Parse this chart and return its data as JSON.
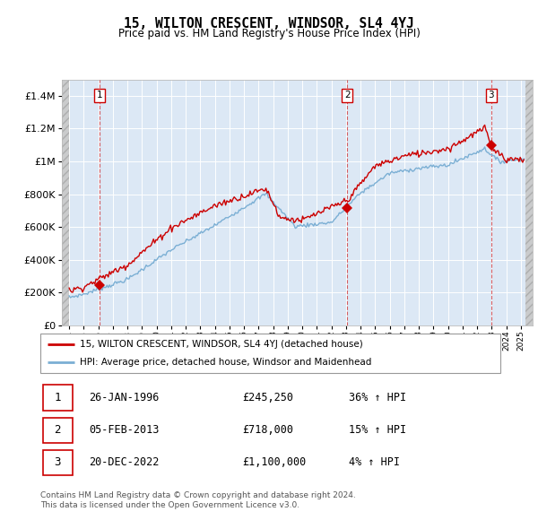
{
  "title": "15, WILTON CRESCENT, WINDSOR, SL4 4YJ",
  "subtitle": "Price paid vs. HM Land Registry's House Price Index (HPI)",
  "legend_line1": "15, WILTON CRESCENT, WINDSOR, SL4 4YJ (detached house)",
  "legend_line2": "HPI: Average price, detached house, Windsor and Maidenhead",
  "sale_color": "#cc0000",
  "hpi_color": "#7bafd4",
  "bg_color": "#dce8f5",
  "hatch_color": "#c8c8c8",
  "purchases": [
    {
      "date": 1996.07,
      "price": 245250,
      "label": "1"
    },
    {
      "date": 2013.09,
      "price": 718000,
      "label": "2"
    },
    {
      "date": 2022.96,
      "price": 1100000,
      "label": "3"
    }
  ],
  "table_rows": [
    {
      "num": "1",
      "date": "26-JAN-1996",
      "price": "£245,250",
      "pct": "36% ↑ HPI"
    },
    {
      "num": "2",
      "date": "05-FEB-2013",
      "price": "£718,000",
      "pct": "15% ↑ HPI"
    },
    {
      "num": "3",
      "date": "20-DEC-2022",
      "price": "£1,100,000",
      "pct": "4% ↑ HPI"
    }
  ],
  "footer1": "Contains HM Land Registry data © Crown copyright and database right 2024.",
  "footer2": "This data is licensed under the Open Government Licence v3.0.",
  "ylim": [
    0,
    1500000
  ],
  "yticks": [
    0,
    200000,
    400000,
    600000,
    800000,
    1000000,
    1200000,
    1400000
  ],
  "xlim_start": 1993.5,
  "xlim_end": 2025.8,
  "data_start": 1994.0,
  "data_end": 2025.3
}
